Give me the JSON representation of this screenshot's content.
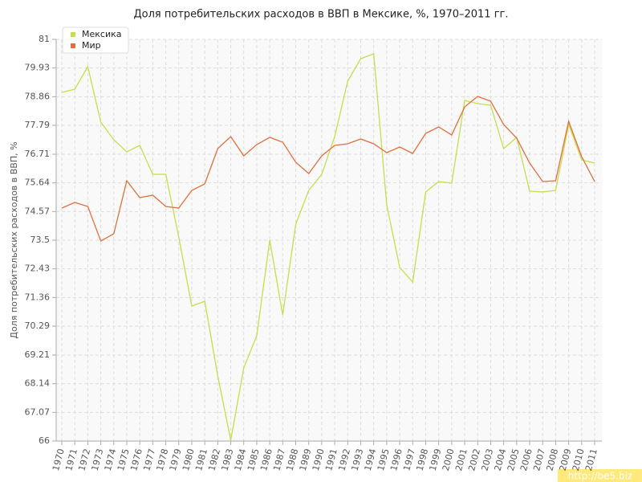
{
  "chart_data": {
    "type": "line",
    "title": "Доля потребительских расходов в ВВП в Мексике, %, 1970–2011 гг.",
    "y_label": "Доля потребительских расходов в ВВП, %",
    "watermark": "http://be5.biz",
    "legend": "top-left",
    "grid": true,
    "categories": [
      "1970",
      "1971",
      "1972",
      "1973",
      "1974",
      "1975",
      "1976",
      "1977",
      "1978",
      "1979",
      "1980",
      "1981",
      "1982",
      "1983",
      "1984",
      "1985",
      "1986",
      "1987",
      "1988",
      "1989",
      "1990",
      "1991",
      "1992",
      "1993",
      "1994",
      "1995",
      "1996",
      "1997",
      "1998",
      "1999",
      "2000",
      "2001",
      "2002",
      "2003",
      "2004",
      "2005",
      "2006",
      "2007",
      "2008",
      "2009",
      "2010",
      "2011"
    ],
    "ylim": [
      66,
      81
    ],
    "yticks": [
      66,
      67.07,
      68.14,
      69.21,
      70.29,
      71.36,
      72.43,
      73.5,
      74.57,
      75.64,
      76.71,
      77.79,
      78.86,
      79.93,
      81
    ],
    "series": [
      {
        "name": "Мексика",
        "color": "#c5de4b",
        "values": [
          79.02,
          79.14,
          79.98,
          77.91,
          77.25,
          76.8,
          77.04,
          75.96,
          75.96,
          73.62,
          71.04,
          71.22,
          68.43,
          66.03,
          68.73,
          69.93,
          73.5,
          70.71,
          74.1,
          75.36,
          75.96,
          77.37,
          79.44,
          80.28,
          80.46,
          74.82,
          72.48,
          71.94,
          75.3,
          75.69,
          75.63,
          78.72,
          78.6,
          78.54,
          76.92,
          77.34,
          75.33,
          75.3,
          75.36,
          77.82,
          76.5,
          76.38
        ]
      },
      {
        "name": "Мир",
        "color": "#e0703e",
        "values": [
          74.7,
          74.91,
          74.76,
          73.47,
          73.74,
          75.72,
          75.09,
          75.18,
          74.76,
          74.7,
          75.36,
          75.6,
          76.92,
          77.37,
          76.65,
          77.07,
          77.34,
          77.16,
          76.41,
          75.99,
          76.65,
          77.04,
          77.1,
          77.28,
          77.1,
          76.77,
          76.98,
          76.74,
          77.49,
          77.73,
          77.43,
          78.48,
          78.87,
          78.69,
          77.82,
          77.31,
          76.38,
          75.69,
          75.72,
          77.94,
          76.62,
          75.69
        ]
      }
    ]
  }
}
